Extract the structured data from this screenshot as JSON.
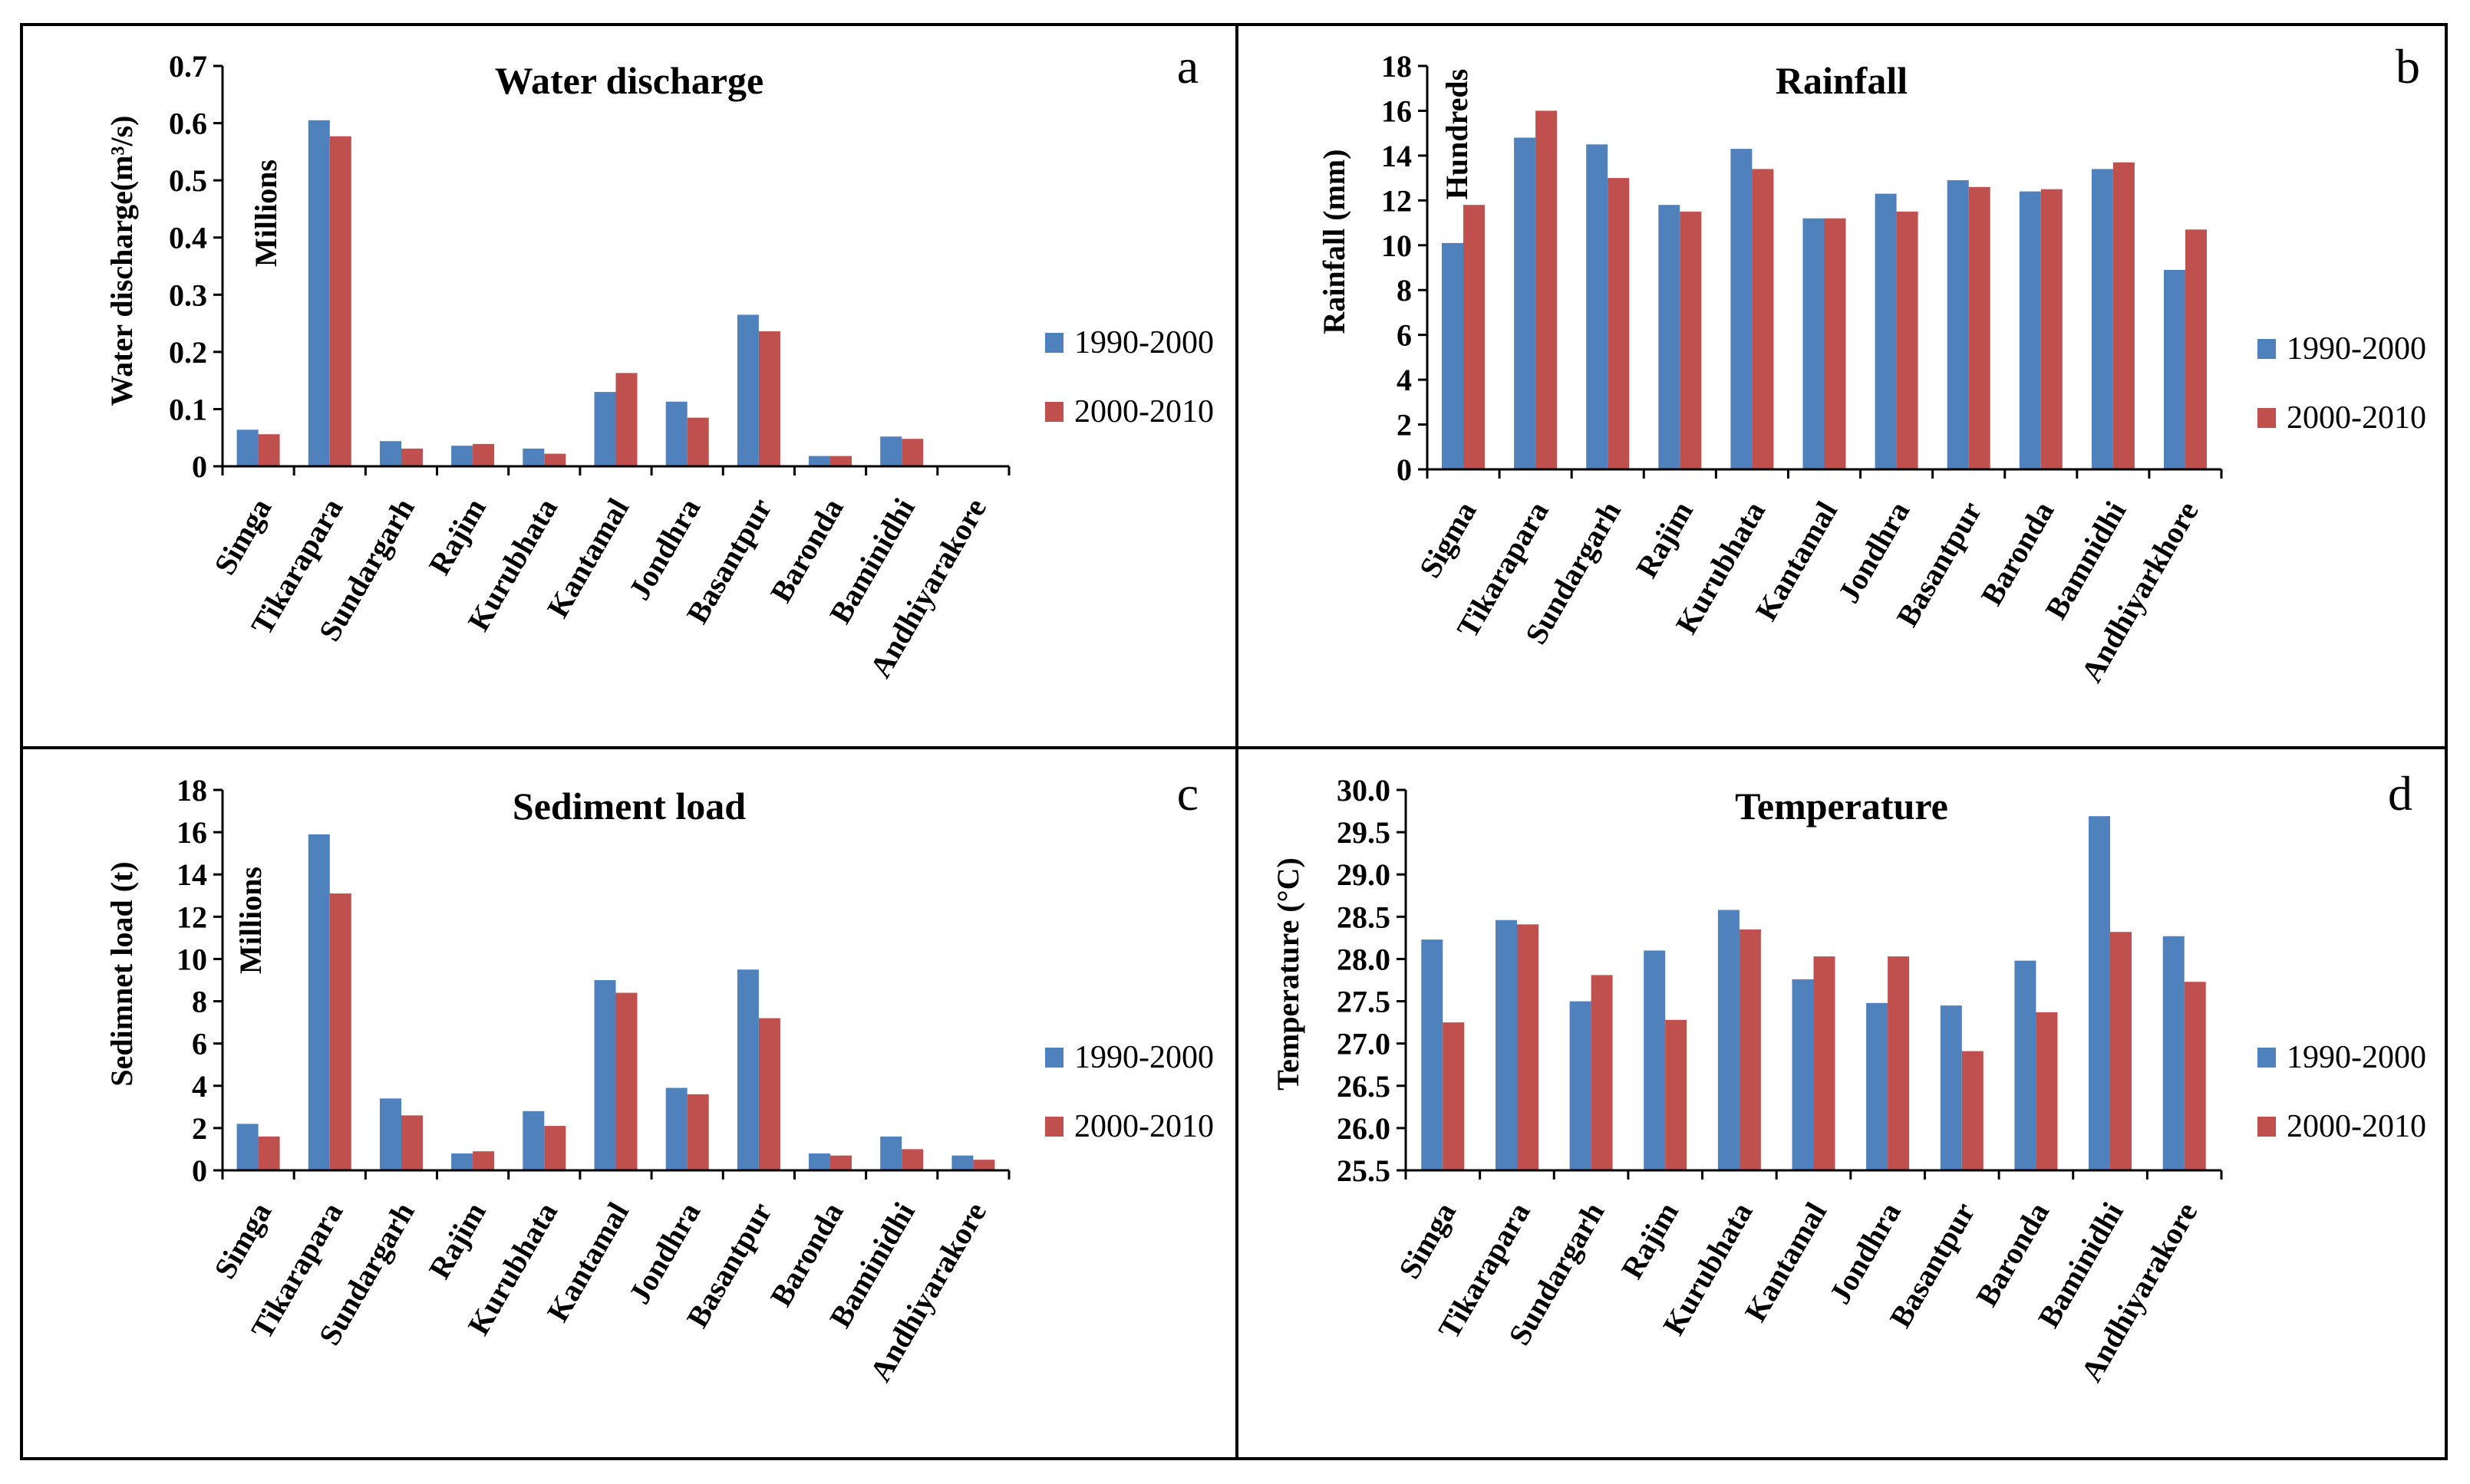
{
  "colors": {
    "series1": "#4F81BD",
    "series2": "#C0504D"
  },
  "chart_data": [
    {
      "id": "a",
      "type": "bar",
      "title": "Water discharge",
      "panel_letter": "a",
      "ylabel": "Water discharge(m³/s)",
      "unit_note": "Millions",
      "ylim": [
        0,
        0.7
      ],
      "yticks": [
        "0",
        "0.1",
        "0.2",
        "0.3",
        "0.4",
        "0.5",
        "0.6",
        "0.7"
      ],
      "categories": [
        "Simga",
        "Tikarapara",
        "Sundargarh",
        "Rajim",
        "Kurubhata",
        "Kantamal",
        "Jondhra",
        "Basantpur",
        "Baronda",
        "Baminidhi",
        "Andhiyarakore"
      ],
      "series": [
        {
          "name": "1990-2000",
          "values": [
            0.064,
            0.605,
            0.044,
            0.036,
            0.031,
            0.13,
            0.113,
            0.265,
            0.018,
            0.052,
            0
          ]
        },
        {
          "name": "2000-2010",
          "values": [
            0.056,
            0.577,
            0.031,
            0.039,
            0.022,
            0.163,
            0.085,
            0.236,
            0.018,
            0.048,
            0
          ]
        }
      ]
    },
    {
      "id": "b",
      "type": "bar",
      "title": "Rainfall",
      "panel_letter": "b",
      "ylabel": "Rainfall (mm)",
      "unit_note": "Hundreds",
      "ylim": [
        0,
        18
      ],
      "yticks": [
        "0",
        "2",
        "4",
        "6",
        "8",
        "10",
        "12",
        "14",
        "16",
        "18"
      ],
      "categories": [
        "Sigma",
        "Tikarapara",
        "Sundargarh",
        "Rajim",
        "Kurubhata",
        "Kantamal",
        "Jondhra",
        "Basantpur",
        "Baronda",
        "Bamnidhi",
        "Andhiyarkhore"
      ],
      "series": [
        {
          "name": "1990-2000",
          "values": [
            10.1,
            14.8,
            14.5,
            11.8,
            14.3,
            11.2,
            12.3,
            12.9,
            12.4,
            13.4,
            8.9
          ]
        },
        {
          "name": "2000-2010",
          "values": [
            11.8,
            16.0,
            13.0,
            11.5,
            13.4,
            11.2,
            11.5,
            12.6,
            12.5,
            13.7,
            10.7
          ]
        }
      ]
    },
    {
      "id": "c",
      "type": "bar",
      "title": "Sediment load",
      "panel_letter": "c",
      "ylabel": "Sedimnet load (t)",
      "unit_note": "Millions",
      "ylim": [
        0,
        18
      ],
      "yticks": [
        "0",
        "2",
        "4",
        "6",
        "8",
        "10",
        "12",
        "14",
        "16",
        "18"
      ],
      "categories": [
        "Simga",
        "Tikarapara",
        "Sundargarh",
        "Rajim",
        "Kurubhata",
        "Kantamal",
        "Jondhra",
        "Basantpur",
        "Baronda",
        "Baminidhi",
        "Andhiyarakore"
      ],
      "series": [
        {
          "name": "1990-2000",
          "values": [
            2.2,
            15.9,
            3.4,
            0.8,
            2.8,
            9.0,
            3.9,
            9.5,
            0.8,
            1.6,
            0.7
          ]
        },
        {
          "name": "2000-2010",
          "values": [
            1.6,
            13.1,
            2.6,
            0.9,
            2.1,
            8.4,
            3.6,
            7.2,
            0.7,
            1.0,
            0.5
          ]
        }
      ]
    },
    {
      "id": "d",
      "type": "bar",
      "title": "Temperature",
      "panel_letter": "d",
      "ylabel": "Temperature (°C)",
      "unit_note": "",
      "ylim": [
        25.5,
        30.0
      ],
      "yticks": [
        "25.5",
        "26.0",
        "26.5",
        "27.0",
        "27.5",
        "28.0",
        "28.5",
        "29.0",
        "29.5",
        "30.0"
      ],
      "categories": [
        "Simga",
        "Tikarapara",
        "Sundargarh",
        "Rajim",
        "Kurubhata",
        "Kantamal",
        "Jondhra",
        "Basantpur",
        "Baronda",
        "Baminidhi",
        "Andhiyarakore"
      ],
      "series": [
        {
          "name": "1990-2000",
          "values": [
            28.23,
            28.46,
            27.5,
            28.1,
            28.58,
            27.76,
            27.48,
            27.45,
            27.98,
            29.69,
            28.27
          ]
        },
        {
          "name": "2000-2010",
          "values": [
            27.25,
            28.41,
            27.81,
            27.28,
            28.35,
            28.03,
            28.03,
            26.91,
            27.37,
            28.32,
            27.73
          ]
        }
      ]
    }
  ]
}
